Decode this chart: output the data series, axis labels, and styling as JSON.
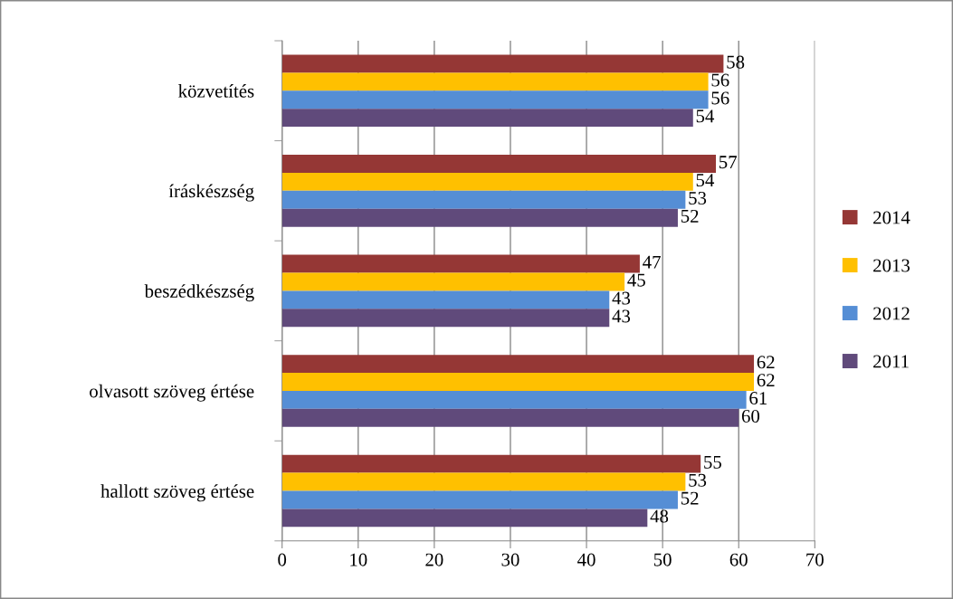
{
  "chart_data": {
    "type": "bar",
    "orientation": "horizontal",
    "categories": [
      "közvetítés",
      "íráskészség",
      "beszédkészség",
      "olvasott szöveg értése",
      "hallott szöveg értése"
    ],
    "series": [
      {
        "name": "2014",
        "color": "#953735",
        "values": [
          58,
          57,
          47,
          62,
          55
        ]
      },
      {
        "name": "2013",
        "color": "#ffc000",
        "values": [
          56,
          54,
          45,
          62,
          53
        ]
      },
      {
        "name": "2012",
        "color": "#558ed5",
        "values": [
          56,
          53,
          43,
          61,
          52
        ]
      },
      {
        "name": "2011",
        "color": "#604a7b",
        "values": [
          54,
          52,
          43,
          60,
          48
        ]
      }
    ],
    "xlim": [
      0,
      70
    ],
    "xticks": [
      0,
      10,
      20,
      30,
      40,
      50,
      60,
      70
    ],
    "grid": "x",
    "legend": "right",
    "data_labels": true
  }
}
